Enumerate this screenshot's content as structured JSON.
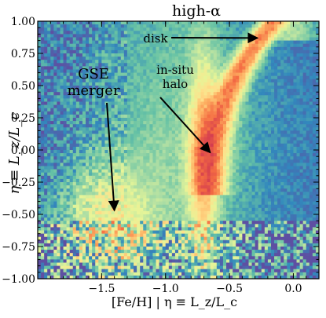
{
  "chart_data": {
    "type": "heatmap",
    "title": "high-α",
    "xlabel": "[Fe/H]  |  η ≡ L_z/L_c",
    "ylabel": "η ≡ L_z/L_c",
    "xlim": [
      -2.0,
      0.2
    ],
    "ylim": [
      -1.0,
      1.0
    ],
    "x_ticks": [
      -1.5,
      -1.0,
      -0.5,
      0.0
    ],
    "x_tick_labels": [
      "−1.5",
      "−1.0",
      "−0.5",
      "0.0"
    ],
    "y_ticks": [
      -1.0,
      -0.75,
      -0.5,
      -0.25,
      0.0,
      0.25,
      0.5,
      0.75,
      1.0
    ],
    "y_tick_labels": [
      "−1.00",
      "−0.75",
      "−0.50",
      "−0.25",
      "0.00",
      "0.25",
      "0.50",
      "0.75",
      "1.00"
    ],
    "grid": false,
    "colormap": [
      "#5e4fa2",
      "#3288bd",
      "#66c2a5",
      "#abdda4",
      "#e6f598",
      "#fee08b",
      "#fdae61",
      "#f46d43",
      "#d53e4f",
      "#9e0142"
    ],
    "density_components": [
      {
        "label": "disk",
        "feh_at_eta_1": -0.15,
        "peak_feh_mid": -0.65,
        "eta_range": [
          -0.3,
          1.0
        ],
        "weight": 1.0
      },
      {
        "label": "in-situ halo",
        "center_feh": -0.7,
        "eta_range": [
          -0.9,
          0.2
        ],
        "weight": 0.75
      },
      {
        "label": "GSE merger",
        "center_feh": -1.45,
        "center_eta": -0.55,
        "weight": 0.45
      }
    ],
    "annotations": [
      {
        "text": "disk",
        "arrow_to": [
          -0.28,
          0.87
        ]
      },
      {
        "text": "in-situ\nhalo",
        "arrow_to": [
          -0.65,
          -0.02
        ]
      },
      {
        "text": "GSE\nmerger",
        "arrow_to": [
          -1.4,
          -0.47
        ]
      }
    ]
  }
}
